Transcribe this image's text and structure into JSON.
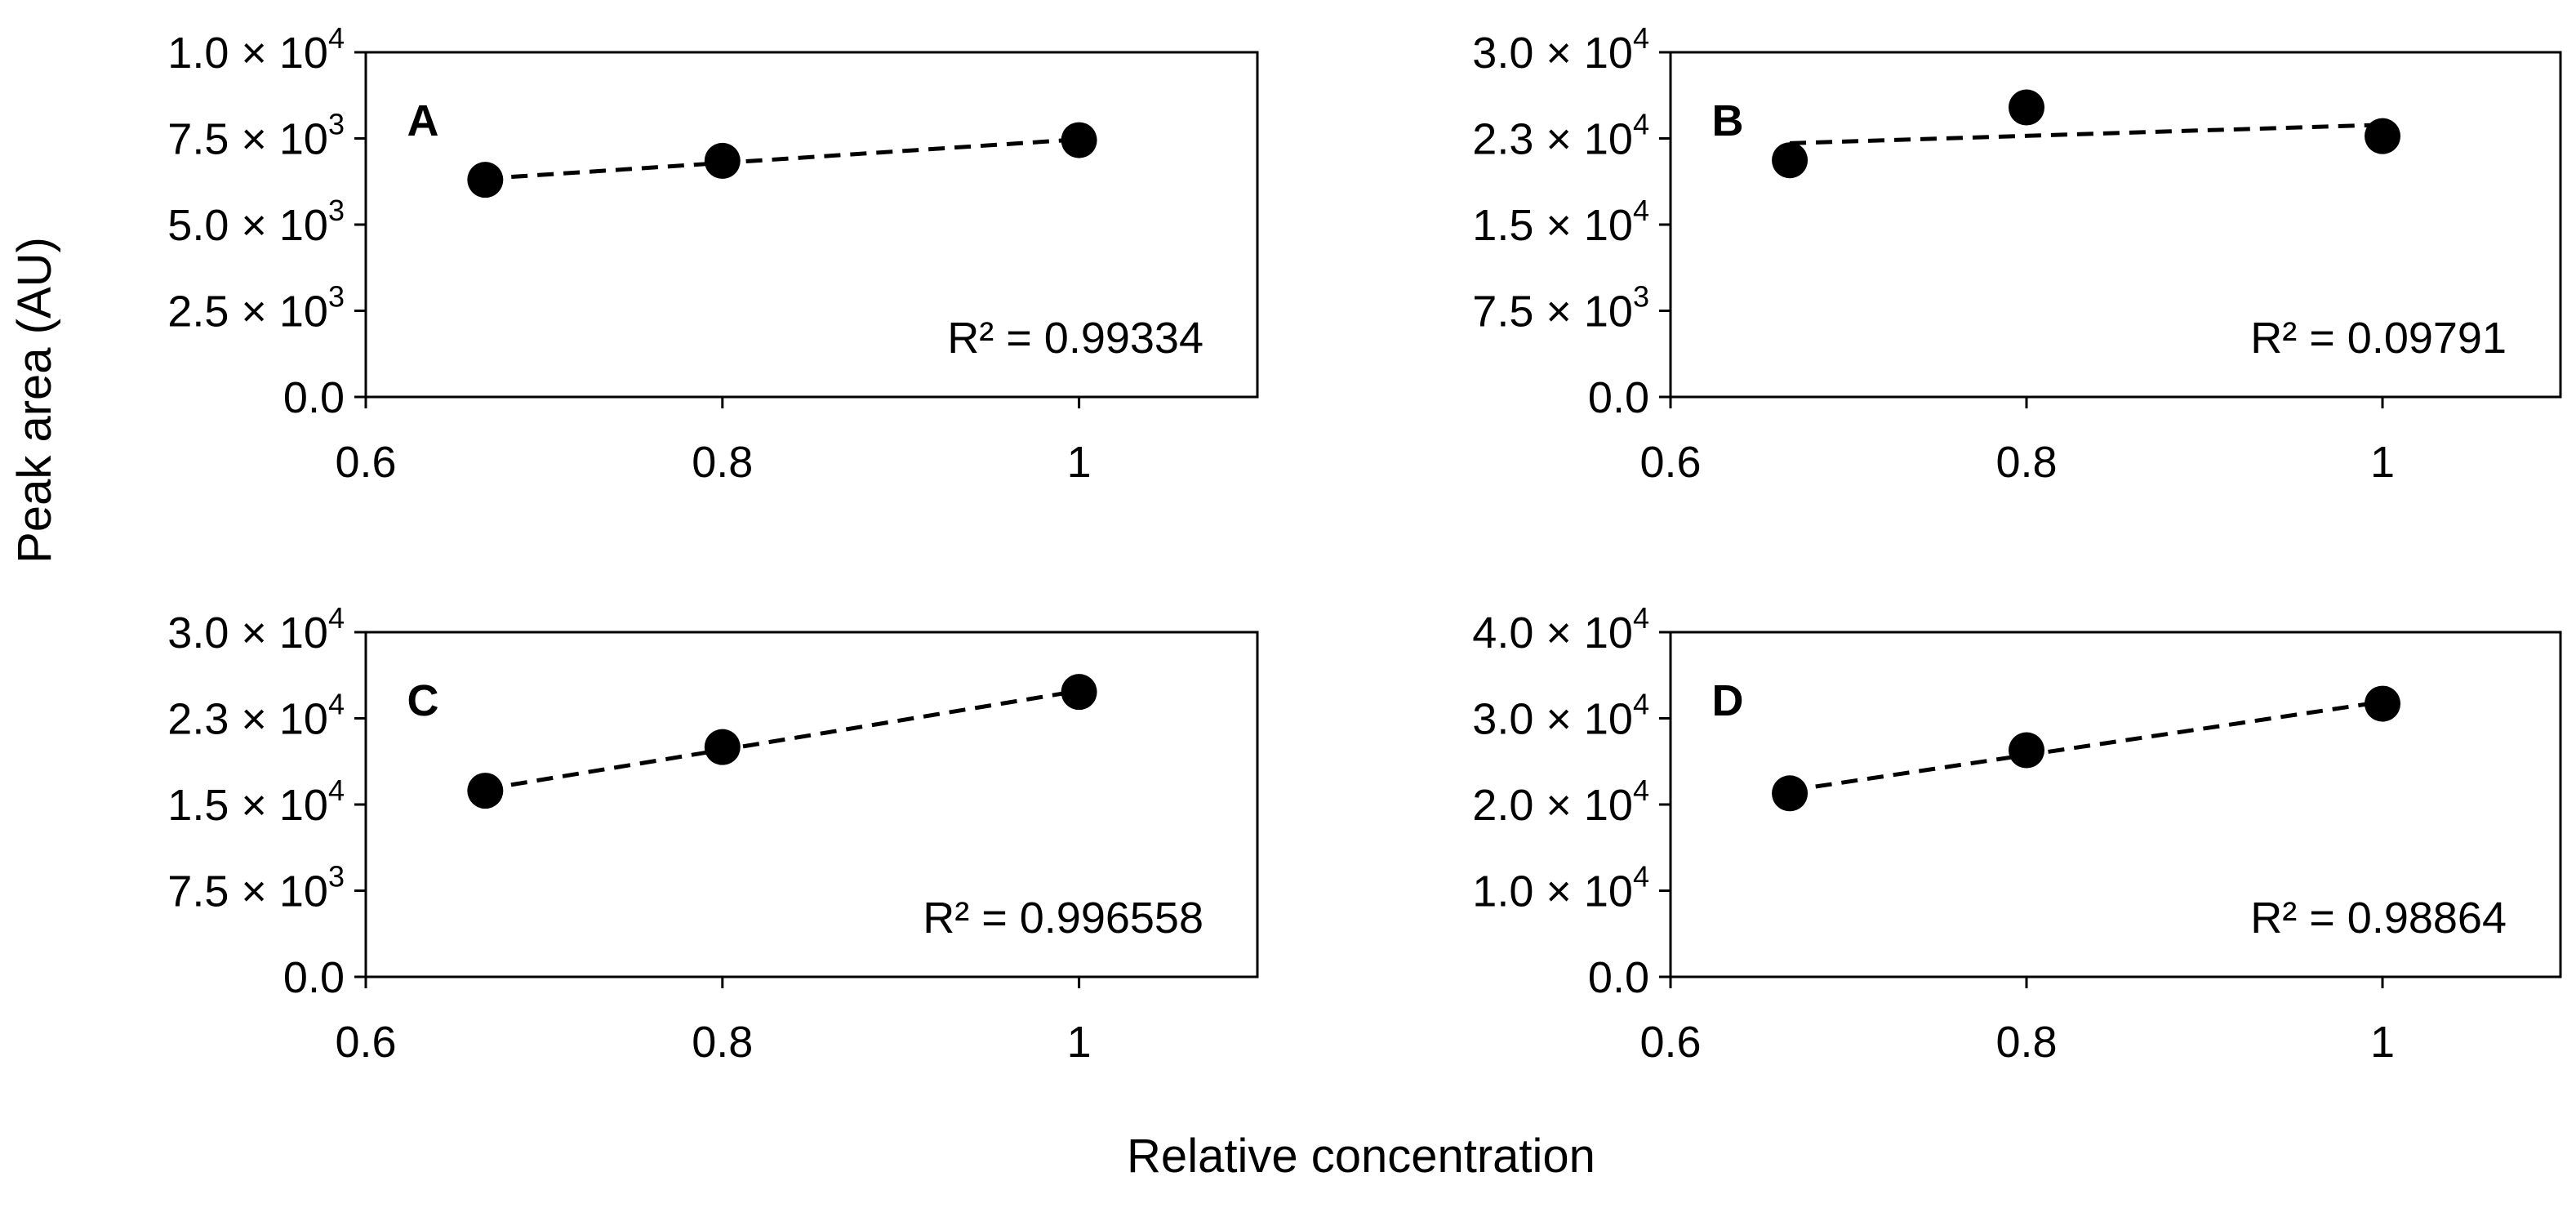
{
  "figure": {
    "ylabel": "Peak area (AU)",
    "xlabel": "Relative concentration"
  },
  "chart_data": [
    {
      "type": "scatter",
      "panel": "A",
      "x": [
        0.667,
        0.8,
        1.0
      ],
      "y": [
        6300,
        6850,
        7450
      ],
      "trendline": "linear (dashed)",
      "annotation": "R² = 0.99334",
      "xlim": [
        0.6,
        1.1
      ],
      "ylim": [
        0,
        10000
      ],
      "xticks": [
        0.6,
        0.8,
        1.0
      ],
      "xtick_labels": [
        "0.6",
        "0.8",
        "1"
      ],
      "yticks": [
        0,
        2500,
        5000,
        7500,
        10000
      ],
      "ytick_labels": [
        {
          "mantissa": "0.0",
          "exponent": ""
        },
        {
          "mantissa": "2.5",
          "exponent": "3"
        },
        {
          "mantissa": "5.0",
          "exponent": "3"
        },
        {
          "mantissa": "7.5",
          "exponent": "3"
        },
        {
          "mantissa": "1.0",
          "exponent": "4"
        }
      ]
    },
    {
      "type": "scatter",
      "panel": "B",
      "x": [
        0.667,
        0.8,
        1.0
      ],
      "y": [
        20600,
        25200,
        22700
      ],
      "trendline": "linear (dashed)",
      "annotation": "R² = 0.09791",
      "xlim": [
        0.6,
        1.1
      ],
      "ylim": [
        0,
        30000
      ],
      "xticks": [
        0.6,
        0.8,
        1.0
      ],
      "xtick_labels": [
        "0.6",
        "0.8",
        "1"
      ],
      "yticks": [
        0,
        7500,
        15000,
        22500,
        30000
      ],
      "ytick_labels": [
        {
          "mantissa": "0.0",
          "exponent": ""
        },
        {
          "mantissa": "7.5",
          "exponent": "3"
        },
        {
          "mantissa": "1.5",
          "exponent": "4"
        },
        {
          "mantissa": "2.3",
          "exponent": "4"
        },
        {
          "mantissa": "3.0",
          "exponent": "4"
        }
      ]
    },
    {
      "type": "scatter",
      "panel": "C",
      "x": [
        0.667,
        0.8,
        1.0
      ],
      "y": [
        16200,
        20000,
        24800
      ],
      "trendline": "linear (dashed)",
      "annotation": "R² = 0.996558",
      "xlim": [
        0.6,
        1.1
      ],
      "ylim": [
        0,
        30000
      ],
      "xticks": [
        0.6,
        0.8,
        1.0
      ],
      "xtick_labels": [
        "0.6",
        "0.8",
        "1"
      ],
      "yticks": [
        0,
        7500,
        15000,
        22500,
        30000
      ],
      "ytick_labels": [
        {
          "mantissa": "0.0",
          "exponent": ""
        },
        {
          "mantissa": "7.5",
          "exponent": "3"
        },
        {
          "mantissa": "1.5",
          "exponent": "4"
        },
        {
          "mantissa": "2.3",
          "exponent": "4"
        },
        {
          "mantissa": "3.0",
          "exponent": "4"
        }
      ]
    },
    {
      "type": "scatter",
      "panel": "D",
      "x": [
        0.667,
        0.8,
        1.0
      ],
      "y": [
        21300,
        26300,
        31700
      ],
      "trendline": "linear (dashed)",
      "annotation": "R² = 0.98864",
      "xlim": [
        0.6,
        1.1
      ],
      "ylim": [
        0,
        40000
      ],
      "xticks": [
        0.6,
        0.8,
        1.0
      ],
      "xtick_labels": [
        "0.6",
        "0.8",
        "1"
      ],
      "yticks": [
        0,
        10000,
        20000,
        30000,
        40000
      ],
      "ytick_labels": [
        {
          "mantissa": "0.0",
          "exponent": ""
        },
        {
          "mantissa": "1.0",
          "exponent": "4"
        },
        {
          "mantissa": "2.0",
          "exponent": "4"
        },
        {
          "mantissa": "3.0",
          "exponent": "4"
        },
        {
          "mantissa": "4.0",
          "exponent": "4"
        }
      ]
    }
  ]
}
